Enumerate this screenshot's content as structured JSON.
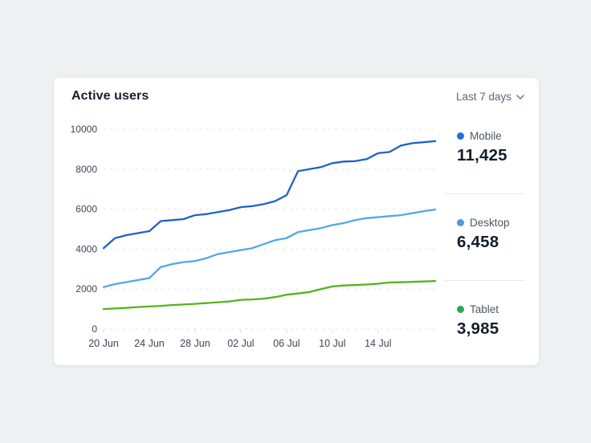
{
  "card": {
    "title": "Active users",
    "range_selector": {
      "label": "Last 7 days"
    }
  },
  "chart_data": {
    "type": "line",
    "title": "Active users",
    "x_count": 30,
    "x_tick_labels": [
      {
        "pos": 0,
        "label": "20 Jun"
      },
      {
        "pos": 4,
        "label": "24 Jun"
      },
      {
        "pos": 8,
        "label": "28 Jun"
      },
      {
        "pos": 12,
        "label": "02 Jul"
      },
      {
        "pos": 16,
        "label": "06 Jul"
      },
      {
        "pos": 20,
        "label": "10 Jul"
      },
      {
        "pos": 24,
        "label": "14 Jul"
      }
    ],
    "ylim": [
      0,
      10000
    ],
    "y_ticks": [
      0,
      2000,
      4000,
      6000,
      8000,
      10000
    ],
    "grid": "horizontal-dashed",
    "grid_color": "#e2e4e8",
    "tick_color": "#d5d8dc",
    "legend_position": "right",
    "series": [
      {
        "name": "Mobile",
        "current": "11,425",
        "color": "#1e63c5",
        "dot_color": "#2271d6",
        "values": [
          4050,
          4550,
          4700,
          4800,
          4900,
          5400,
          5450,
          5500,
          5700,
          5750,
          5850,
          5950,
          6100,
          6150,
          6250,
          6400,
          6700,
          7900,
          8000,
          8100,
          8300,
          8380,
          8400,
          8500,
          8800,
          8860,
          9180,
          9300,
          9350,
          9400
        ]
      },
      {
        "name": "Desktop",
        "current": "6,458",
        "color": "#54a6e6",
        "dot_color": "#479ddf",
        "values": [
          2100,
          2250,
          2350,
          2450,
          2550,
          3100,
          3250,
          3350,
          3400,
          3550,
          3750,
          3850,
          3950,
          4050,
          4250,
          4450,
          4550,
          4850,
          4950,
          5050,
          5200,
          5300,
          5450,
          5550,
          5600,
          5650,
          5700,
          5800,
          5900,
          5980
        ]
      },
      {
        "name": "Tablet",
        "current": "3,985",
        "color": "#56b21d",
        "dot_color": "#2da64d",
        "values": [
          1000,
          1030,
          1060,
          1100,
          1130,
          1160,
          1200,
          1230,
          1260,
          1300,
          1340,
          1380,
          1460,
          1480,
          1520,
          1600,
          1720,
          1780,
          1850,
          2000,
          2130,
          2180,
          2200,
          2230,
          2270,
          2330,
          2340,
          2360,
          2380,
          2400
        ]
      }
    ]
  }
}
